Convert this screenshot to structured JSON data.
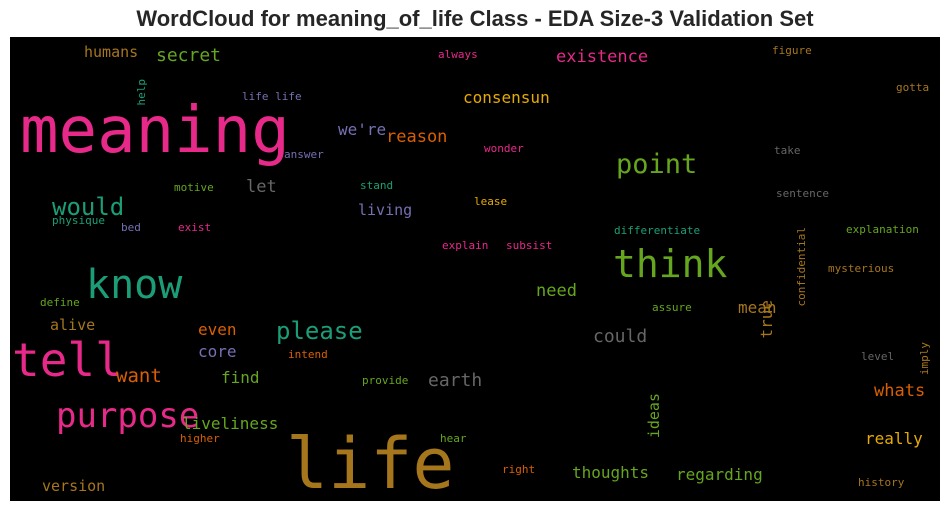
{
  "title": "WordCloud for meaning_of_life Class - EDA Size-3 Validation Set",
  "colors": {
    "pink": "#e7298a",
    "green": "#66a61e",
    "teal": "#1b9e77",
    "orange": "#d95f02",
    "gold": "#e6ab02",
    "brown": "#a6761d",
    "purple": "#7570b3",
    "gray": "#666666"
  },
  "words": [
    "meaning",
    "life",
    "tell",
    "know",
    "think",
    "purpose",
    "point",
    "please",
    "would",
    "secret",
    "existence",
    "consensun",
    "humans",
    "we're",
    "reason",
    "let",
    "living",
    "need",
    "could",
    "earth",
    "alive",
    "even",
    "core",
    "want",
    "find",
    "liveliness",
    "mean",
    "true",
    "whats",
    "really",
    "regarding",
    "thoughts",
    "ideas",
    "version",
    "life life",
    "always",
    "figure",
    "gotta",
    "help",
    "wonder",
    "answer",
    "take",
    "stand",
    "motive",
    "lease",
    "sentence",
    "physique",
    "bed",
    "exist",
    "differentiate",
    "explanation",
    "explain",
    "subsist",
    "confidential",
    "mysterious",
    "define",
    "assure",
    "intend",
    "level",
    "imply",
    "provide",
    "higher",
    "hear",
    "right",
    "history"
  ]
}
